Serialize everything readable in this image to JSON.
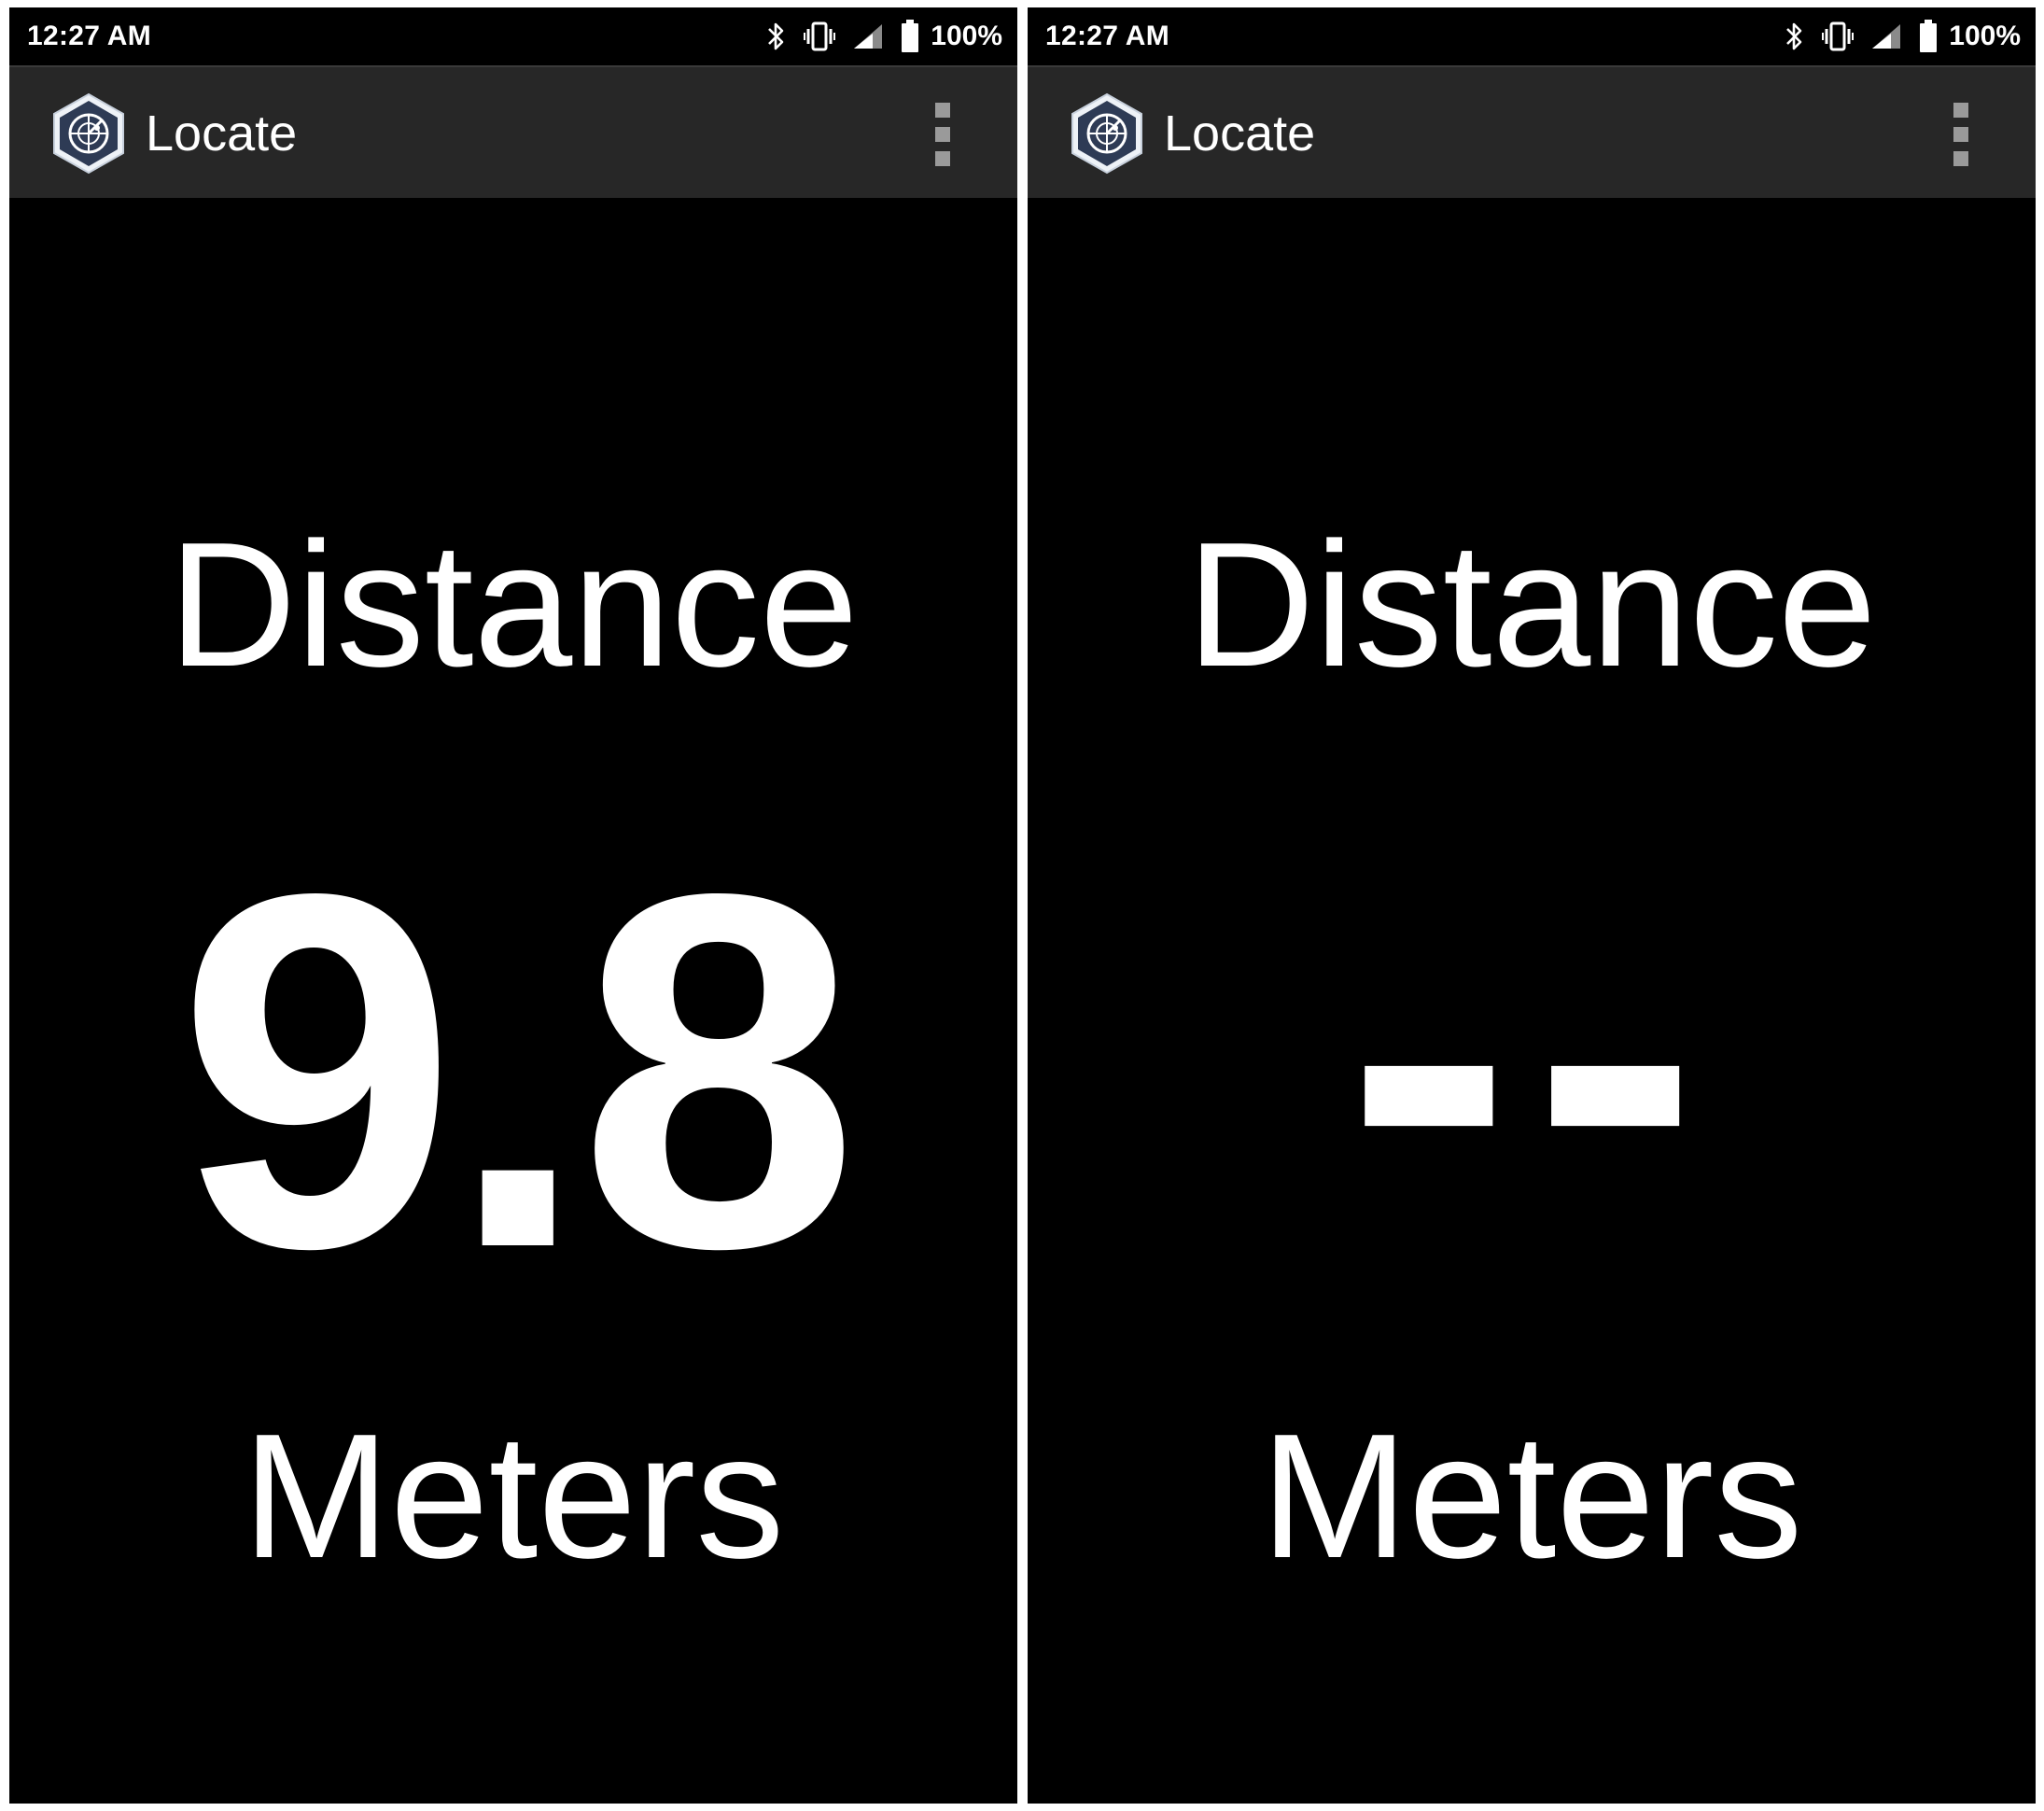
{
  "colors": {
    "background": "#000000",
    "app_bar": "#272727",
    "text": "#ffffff",
    "logo_fill": "#2e3b55",
    "overflow_dots": "#9a9a9a"
  },
  "screens": [
    {
      "status_bar": {
        "time": "12:27 AM",
        "battery": "100%",
        "icons": [
          "bluetooth-icon",
          "vibrate-icon",
          "signal-icon",
          "battery-icon"
        ]
      },
      "app_bar": {
        "title": "Locate",
        "logo_icon": "radar-hexagon-icon",
        "menu_icon": "overflow-menu-icon"
      },
      "content": {
        "label": "Distance",
        "value": "9.8",
        "unit": "Meters"
      }
    },
    {
      "status_bar": {
        "time": "12:27 AM",
        "battery": "100%",
        "icons": [
          "bluetooth-icon",
          "vibrate-icon",
          "signal-icon",
          "battery-icon"
        ]
      },
      "app_bar": {
        "title": "Locate",
        "logo_icon": "radar-hexagon-icon",
        "menu_icon": "overflow-menu-icon"
      },
      "content": {
        "label": "Distance",
        "value": "--",
        "unit": "Meters"
      }
    }
  ]
}
